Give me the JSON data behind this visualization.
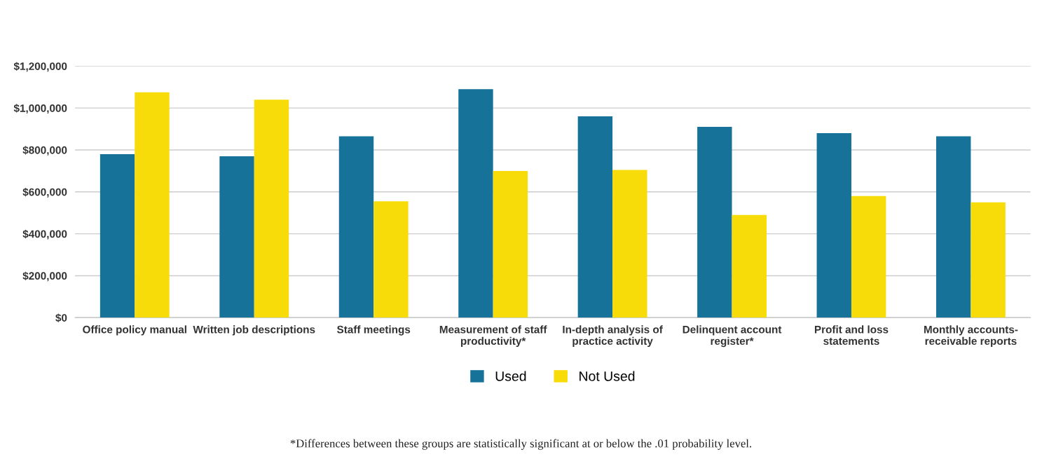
{
  "chart_data": {
    "type": "bar",
    "categories": [
      "Office policy manual",
      "Written job descriptions",
      "Staff meetings",
      "Measurement of staff\nproductivity*",
      "In-depth analysis of\npractice activity",
      "Delinquent account\nregister*",
      "Profit and loss\nstatements",
      "Monthly accounts-\nreceivable reports"
    ],
    "series": [
      {
        "name": "Used",
        "color": "#17729a",
        "values": [
          780000,
          770000,
          865000,
          1090000,
          960000,
          910000,
          880000,
          865000
        ]
      },
      {
        "name": "Not Used",
        "color": "#f8dc0a",
        "values": [
          1075000,
          1040000,
          555000,
          700000,
          705000,
          490000,
          580000,
          550000
        ]
      }
    ],
    "ylim": [
      0,
      1200000
    ],
    "yticks": [
      {
        "value": 0,
        "label": "$0"
      },
      {
        "value": 200000,
        "label": "$200,000"
      },
      {
        "value": 400000,
        "label": "$400,000"
      },
      {
        "value": 600000,
        "label": "$600,000"
      },
      {
        "value": 800000,
        "label": "$800,000"
      },
      {
        "value": 1000000,
        "label": "$1,000,000"
      },
      {
        "value": 1200000,
        "label": "$1,200,000"
      }
    ],
    "grid": "y",
    "legend": "bottom",
    "annotations": [
      "*Differences between these groups are statistically significant at or below the .01 probability level."
    ]
  }
}
